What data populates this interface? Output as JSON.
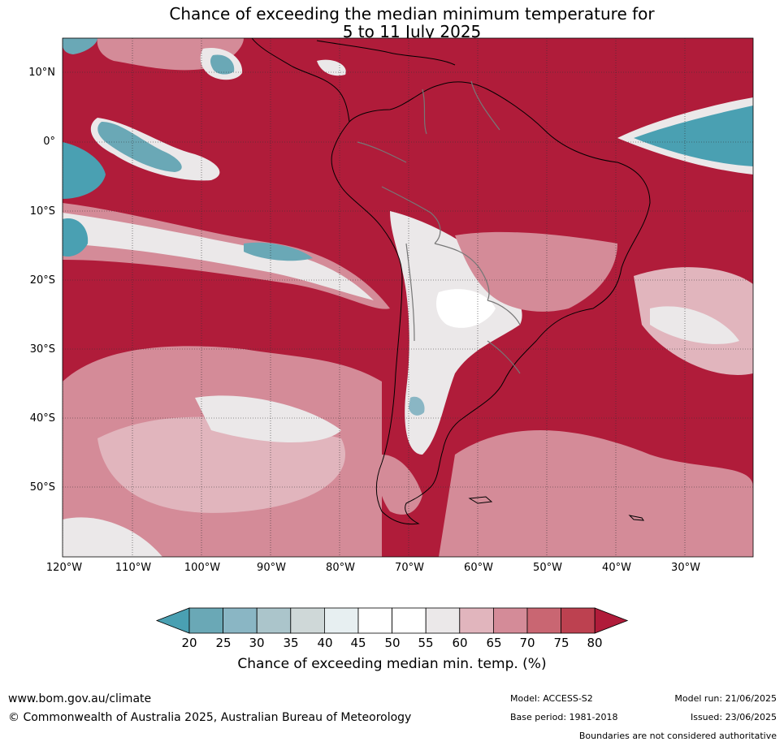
{
  "title": {
    "line1": "Chance of exceeding the median minimum temperature for",
    "line2": "5 to 11 July 2025"
  },
  "map": {
    "lat_labels": [
      "10°N",
      "0°",
      "10°S",
      "20°S",
      "30°S",
      "40°S",
      "50°S"
    ],
    "lon_labels": [
      "120°W",
      "110°W",
      "100°W",
      "90°W",
      "80°W",
      "70°W",
      "60°W",
      "50°W",
      "40°W",
      "30°W"
    ],
    "background_color": "#b01c3a"
  },
  "colorbar": {
    "ticks": [
      "20",
      "25",
      "30",
      "35",
      "40",
      "45",
      "50",
      "55",
      "60",
      "65",
      "70",
      "75",
      "80"
    ],
    "colors": [
      "#4aa0b2",
      "#6aa8b6",
      "#8ab6c4",
      "#abc5cb",
      "#cfd8d8",
      "#e7eff1",
      "#ffffff",
      "#ffffff",
      "#ebe8e9",
      "#e1b5bd",
      "#d48b98",
      "#c96672",
      "#bd4150",
      "#b01c3a"
    ],
    "label": "Chance of exceeding median min. temp. (%)"
  },
  "footer": {
    "website": "www.bom.gov.au/climate",
    "copyright": "© Commonwealth of Australia 2025, Australian Bureau of Meteorology",
    "model": "Model: ACCESS-S2",
    "base_period": "Base period: 1981-2018",
    "model_run": "Model run: 21/06/2025",
    "issued": "Issued: 23/06/2025",
    "disclaimer": "Boundaries are not considered authoritative"
  }
}
